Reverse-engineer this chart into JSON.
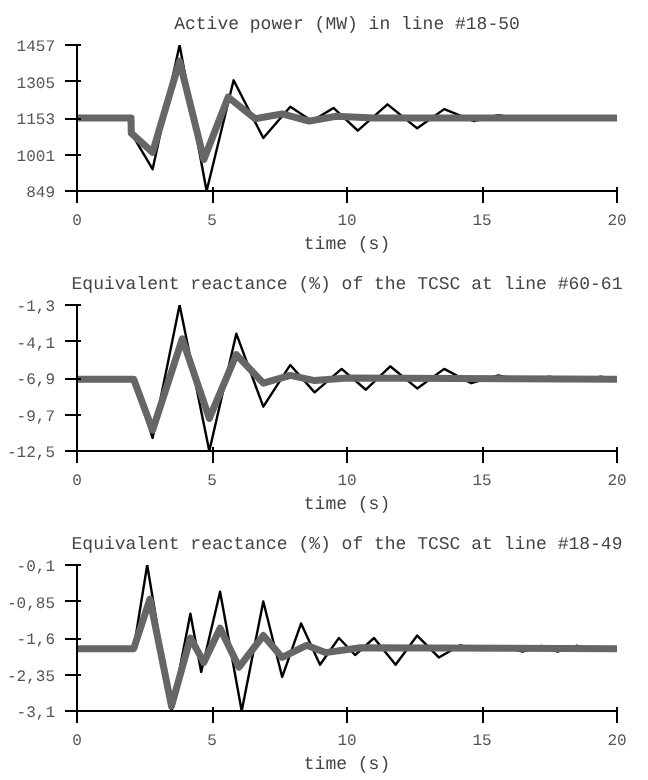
{
  "chart_data": [
    {
      "type": "line",
      "title": "Active power (MW) in line #18-50",
      "xlabel": "time (s)",
      "xlim": [
        0,
        20
      ],
      "xticks": [
        0,
        5,
        10,
        15,
        20
      ],
      "ylim": [
        849,
        1457
      ],
      "yticks": [
        849,
        1001,
        1153,
        1305,
        1457
      ],
      "grid": false,
      "marker": "none",
      "line_style": "solid",
      "series": [
        {
          "color": "#000000",
          "x": [
            0,
            2.0,
            2.01,
            2.8,
            3.8,
            4.8,
            5.8,
            6.9,
            7.9,
            8.7,
            9.5,
            10.4,
            11.5,
            12.6,
            13.6,
            14.7,
            15.6,
            16.5,
            17.5,
            18.5,
            19.4,
            20
          ],
          "values": [
            1153,
            1153,
            1090,
            940,
            1457,
            849,
            1310,
            1070,
            1200,
            1140,
            1195,
            1100,
            1210,
            1110,
            1190,
            1140,
            1165,
            1150,
            1160,
            1150,
            1160,
            1153
          ]
        },
        {
          "color": "#666666",
          "x": [
            0,
            2.0,
            2.01,
            2.8,
            3.8,
            4.7,
            5.6,
            6.6,
            7.6,
            8.6,
            9.6,
            11,
            20
          ],
          "values": [
            1153,
            1153,
            1090,
            1010,
            1390,
            980,
            1240,
            1150,
            1170,
            1140,
            1160,
            1153,
            1153
          ]
        }
      ]
    },
    {
      "type": "line",
      "title": "Equivalent reactance (%) of the TCSC at line #60-61",
      "xlabel": "time (s)",
      "xlim": [
        0,
        20
      ],
      "xticks": [
        0,
        5,
        10,
        15,
        20
      ],
      "ylim": [
        -12.5,
        -1.3
      ],
      "yticks": [
        {
          "value": -12.5,
          "label": "-12,5"
        },
        {
          "value": -9.7,
          "label": "-9,7"
        },
        {
          "value": -6.9,
          "label": "-6,9"
        },
        {
          "value": -4.1,
          "label": "-4,1"
        },
        {
          "value": -1.3,
          "label": "-1,3"
        }
      ],
      "grid": false,
      "marker": "none",
      "line_style": "solid",
      "series": [
        {
          "color": "#000000",
          "x": [
            0,
            2.1,
            2.8,
            3.8,
            4.9,
            5.9,
            6.9,
            7.9,
            8.8,
            9.8,
            10.7,
            11.6,
            12.6,
            13.6,
            14.6,
            15.6,
            16.5,
            17.5,
            18.5,
            19.4,
            20
          ],
          "values": [
            -7.0,
            -7.0,
            -11.5,
            -1.3,
            -12.5,
            -3.5,
            -9.1,
            -5.9,
            -8.0,
            -6.2,
            -7.8,
            -6.0,
            -7.7,
            -6.2,
            -7.3,
            -6.7,
            -7.1,
            -6.8,
            -7.1,
            -6.8,
            -7.0
          ]
        },
        {
          "color": "#666666",
          "x": [
            0,
            2.1,
            2.8,
            3.9,
            4.9,
            5.9,
            6.9,
            7.9,
            8.8,
            10,
            20
          ],
          "values": [
            -7.0,
            -7.0,
            -10.9,
            -3.9,
            -10.0,
            -5.1,
            -7.3,
            -6.7,
            -7.1,
            -6.9,
            -7.0
          ]
        }
      ]
    },
    {
      "type": "line",
      "title": "Equivalent reactance (%) of the TCSC at line #18-49",
      "xlabel": "time (s)",
      "xlim": [
        0,
        20
      ],
      "xticks": [
        0,
        5,
        10,
        15,
        20
      ],
      "ylim": [
        -3.1,
        -0.1
      ],
      "yticks": [
        {
          "value": -3.1,
          "label": "-3,1"
        },
        {
          "value": -2.35,
          "label": "-2,35"
        },
        {
          "value": -1.6,
          "label": "-1,6"
        },
        {
          "value": -0.85,
          "label": "-0,85"
        },
        {
          "value": -0.1,
          "label": "-0,1"
        }
      ],
      "grid": false,
      "marker": "none",
      "line_style": "solid",
      "series": [
        {
          "color": "#000000",
          "x": [
            0,
            2.1,
            2.6,
            3.5,
            4.2,
            4.6,
            5.3,
            6.1,
            6.9,
            7.6,
            8.3,
            9.0,
            9.7,
            10.3,
            11.0,
            11.8,
            12.6,
            13.4,
            14.2,
            15,
            15.8,
            16.5,
            17.2,
            17.8,
            18.5,
            19.2,
            20
          ],
          "values": [
            -1.82,
            -1.82,
            -0.1,
            -3.1,
            -1.1,
            -2.3,
            -0.65,
            -3.1,
            -0.85,
            -2.4,
            -1.3,
            -2.15,
            -1.6,
            -1.95,
            -1.6,
            -2.15,
            -1.55,
            -2.0,
            -1.75,
            -1.85,
            -1.78,
            -1.88,
            -1.76,
            -1.88,
            -1.76,
            -1.85,
            -1.82
          ]
        },
        {
          "color": "#666666",
          "x": [
            0,
            2.1,
            2.7,
            3.5,
            4.2,
            4.7,
            5.3,
            6.0,
            6.9,
            7.6,
            8.5,
            9.2,
            10.5,
            20
          ],
          "values": [
            -1.82,
            -1.82,
            -0.8,
            -3.0,
            -1.6,
            -2.1,
            -1.4,
            -2.2,
            -1.55,
            -2.0,
            -1.75,
            -1.9,
            -1.8,
            -1.82
          ]
        }
      ]
    }
  ]
}
